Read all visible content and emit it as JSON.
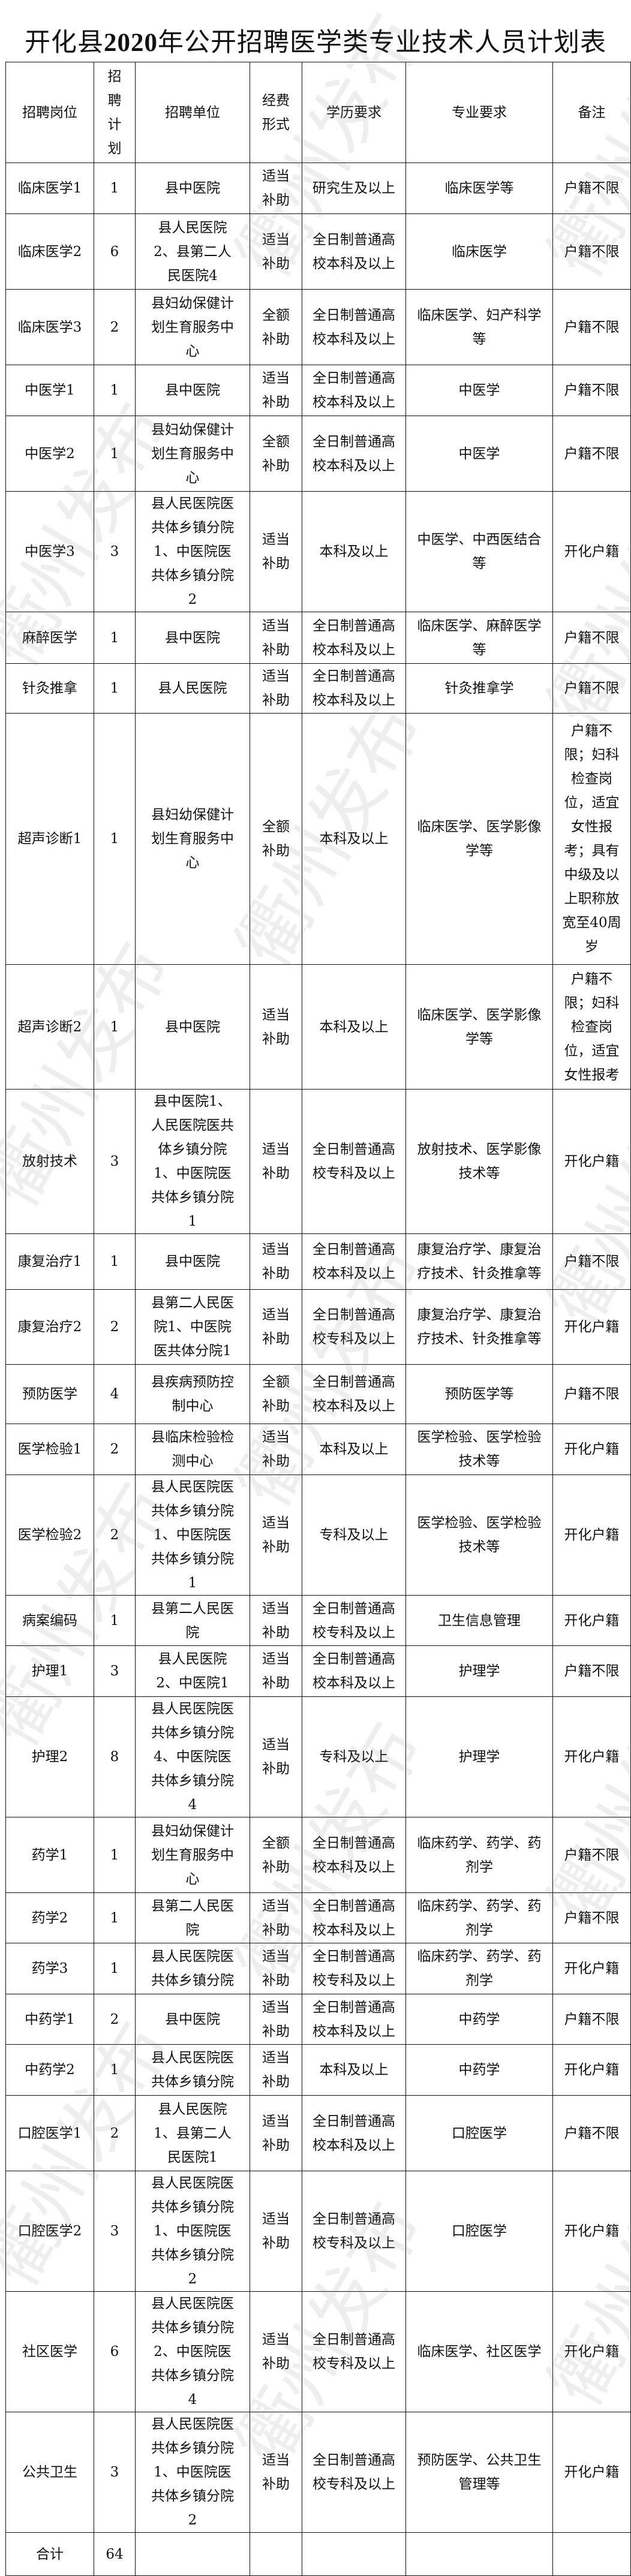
{
  "title_prefix": "开化县",
  "title_year": "2020",
  "title_suffix": "年公开招聘医学类专业技术人员计划表",
  "watermark": "衢州发布",
  "headers": [
    "招聘岗位",
    "招聘计划",
    "招聘单位",
    "经费形式",
    "学历要求",
    "专业要求",
    "备注"
  ],
  "rows": [
    [
      "临床医学1",
      "1",
      "县中医院",
      "适当补助",
      "研究生及以上",
      "临床医学等",
      "户籍不限"
    ],
    [
      "临床医学2",
      "6",
      "县人民医院2、县第二人民医院4",
      "适当补助",
      "全日制普通高校本科及以上",
      "临床医学",
      "户籍不限"
    ],
    [
      "临床医学3",
      "2",
      "县妇幼保健计划生育服务中心",
      "全额补助",
      "全日制普通高校本科及以上",
      "临床医学、妇产科学等",
      "户籍不限"
    ],
    [
      "中医学1",
      "1",
      "县中医院",
      "适当补助",
      "全日制普通高校本科及以上",
      "中医学",
      "户籍不限"
    ],
    [
      "中医学2",
      "1",
      "县妇幼保健计划生育服务中心",
      "全额补助",
      "全日制普通高校本科及以上",
      "中医学",
      "户籍不限"
    ],
    [
      "中医学3",
      "3",
      "县人民医院医共体乡镇分院1、中医院医共体乡镇分院2",
      "适当补助",
      "本科及以上",
      "中医学、中西医结合等",
      "开化户籍"
    ],
    [
      "麻醉医学",
      "1",
      "县中医院",
      "适当补助",
      "全日制普通高校本科及以上",
      "临床医学、麻醉医学等",
      "户籍不限"
    ],
    [
      "针灸推拿",
      "1",
      "县人民医院",
      "适当补助",
      "全日制普通高校本科及以上",
      "针灸推拿学",
      "户籍不限"
    ],
    [
      "超声诊断1",
      "1",
      "县妇幼保健计划生育服务中心",
      "全额补助",
      "本科及以上",
      "临床医学、医学影像学等",
      "户籍不限；妇科检查岗位，适宜女性报考；具有中级及以上职称放宽至40周岁"
    ],
    [
      "超声诊断2",
      "1",
      "县中医院",
      "适当补助",
      "本科及以上",
      "临床医学、医学影像学等",
      "户籍不限；妇科检查岗位，适宜女性报考"
    ],
    [
      "放射技术",
      "3",
      "县中医院1、人民医院医共体乡镇分院1、中医院医共体乡镇分院1",
      "适当补助",
      "全日制普通高校专科及以上",
      "放射技术、医学影像技术等",
      "开化户籍"
    ],
    [
      "康复治疗1",
      "1",
      "县中医院",
      "适当补助",
      "全日制普通高校本科及以上",
      "康复治疗学、康复治疗技术、针灸推拿等",
      "户籍不限"
    ],
    [
      "康复治疗2",
      "2",
      "县第二人民医院1、中医院医共体分院1",
      "适当补助",
      "全日制普通高校专科及以上",
      "康复治疗学、康复治疗技术、针灸推拿等",
      "开化户籍"
    ],
    [
      "预防医学",
      "4",
      "县疾病预防控制中心",
      "全额补助",
      "全日制普通高校本科及以上",
      "预防医学等",
      "户籍不限"
    ],
    [
      "医学检验1",
      "2",
      "县临床检验检测中心",
      "适当补助",
      "本科及以上",
      "医学检验、医学检验技术等",
      "开化户籍"
    ],
    [
      "医学检验2",
      "2",
      "县人民医院医共体乡镇分院1、中医院医共体乡镇分院1",
      "适当补助",
      "专科及以上",
      "医学检验、医学检验技术等",
      "开化户籍"
    ],
    [
      "病案编码",
      "1",
      "县第二人民医院",
      "适当补助",
      "全日制普通高校专科及以上",
      "卫生信息管理",
      "开化户籍"
    ],
    [
      "护理1",
      "3",
      "县人民医院2、中医院1",
      "适当补助",
      "全日制普通高校本科及以上",
      "护理学",
      "户籍不限"
    ],
    [
      "护理2",
      "8",
      "县人民医院医共体乡镇分院4、中医院医共体乡镇分院4",
      "适当补助",
      "专科及以上",
      "护理学",
      "开化户籍"
    ],
    [
      "药学1",
      "1",
      "县妇幼保健计划生育服务中心",
      "全额补助",
      "全日制普通高校本科及以上",
      "临床药学、药学、药剂学",
      "户籍不限"
    ],
    [
      "药学2",
      "1",
      "县第二人民医院",
      "适当补助",
      "全日制普通高校本科及以上",
      "临床药学、药学、药剂学",
      "户籍不限"
    ],
    [
      "药学3",
      "1",
      "县人民医院医共体乡镇分院",
      "适当补助",
      "全日制普通高校专科及以上",
      "临床药学、药学、药剂学",
      "开化户籍"
    ],
    [
      "中药学1",
      "2",
      "县中医院",
      "适当补助",
      "全日制普通高校本科及以上",
      "中药学",
      "户籍不限"
    ],
    [
      "中药学2",
      "1",
      "县人民医院医共体乡镇分院",
      "适当补助",
      "本科及以上",
      "中药学",
      "开化户籍"
    ],
    [
      "口腔医学1",
      "2",
      "县人民医院1、县第二人民医院1",
      "适当补助",
      "全日制普通高校本科及以上",
      "口腔医学",
      "户籍不限"
    ],
    [
      "口腔医学2",
      "3",
      "县人民医院医共体乡镇分院1、中医院医共体乡镇分院2",
      "适当补助",
      "全日制普通高校专科及以上",
      "口腔医学",
      "开化户籍"
    ],
    [
      "社区医学",
      "6",
      "县人民医院医共体乡镇分院2、中医院医共体乡镇分院4",
      "适当补助",
      "全日制普通高校专科及以上",
      "临床医学、社区医学",
      "开化户籍"
    ],
    [
      "公共卫生",
      "3",
      "县人民医院医共体乡镇分院1、中医院医共体乡镇分院2",
      "适当补助",
      "全日制普通高校专科及以上",
      "预防医学、公共卫生管理等",
      "开化户籍"
    ]
  ],
  "total": {
    "label": "合计",
    "count": "64"
  }
}
